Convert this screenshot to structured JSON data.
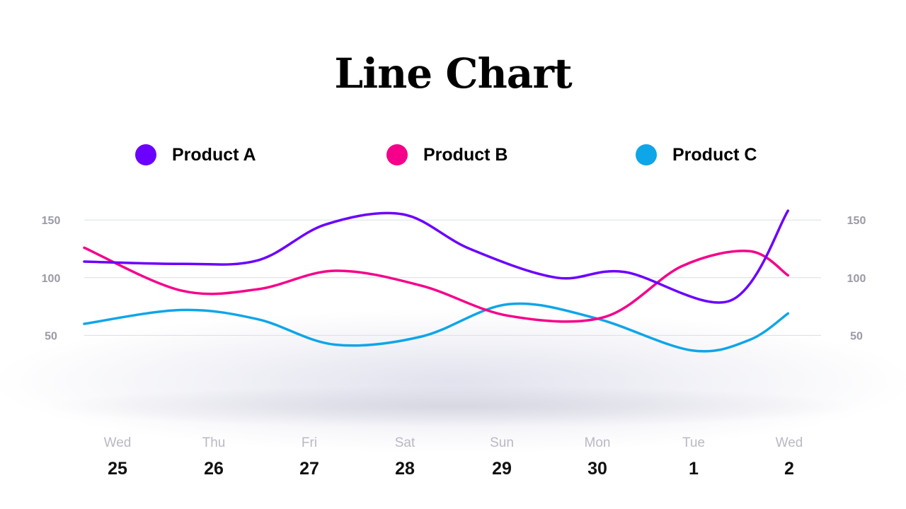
{
  "chart_data": {
    "type": "line",
    "title": "Line Chart",
    "x_days": [
      "Wed",
      "Thu",
      "Fri",
      "Sat",
      "Sun",
      "Mon",
      "Tue",
      "Wed"
    ],
    "x_dates": [
      "25",
      "26",
      "27",
      "28",
      "29",
      "30",
      "1",
      "2"
    ],
    "y_ticks": [
      50,
      100,
      150
    ],
    "ylim": [
      0,
      150
    ],
    "grid": true,
    "legend_position": "top",
    "series": [
      {
        "name": "Product A",
        "color": "#6b00ff",
        "x": [
          0,
          1,
          1.8,
          2.5,
          3.3,
          4,
          4.9,
          5.6,
          6.7,
          7.3
        ],
        "y": [
          114,
          112,
          115,
          146,
          155,
          125,
          100,
          105,
          80,
          158
        ]
      },
      {
        "name": "Product B",
        "color": "#f5008a",
        "x": [
          0,
          1,
          1.8,
          2.6,
          3.5,
          4.4,
          5.4,
          6.2,
          6.9,
          7.3
        ],
        "y": [
          126,
          89,
          90,
          106,
          93,
          67,
          66,
          110,
          123,
          102
        ]
      },
      {
        "name": "Product C",
        "color": "#0ea5e9",
        "x": [
          0,
          1,
          1.8,
          2.6,
          3.5,
          4.4,
          5.3,
          6.3,
          6.9,
          7.3
        ],
        "y": [
          60,
          72,
          64,
          42,
          49,
          77,
          65,
          37,
          46,
          69
        ]
      }
    ]
  }
}
